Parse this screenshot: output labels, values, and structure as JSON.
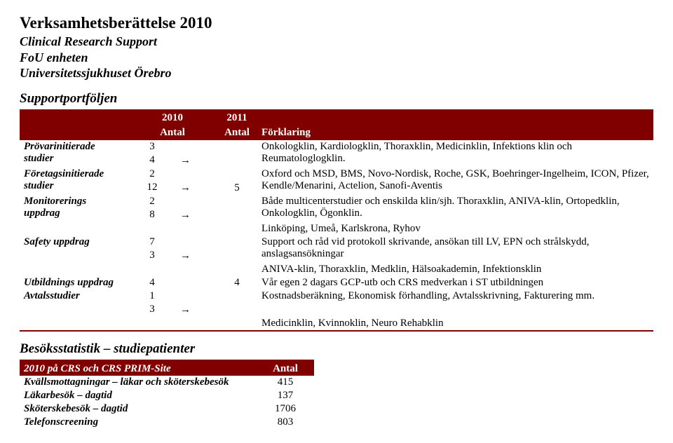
{
  "header": {
    "title": "Verksamhetsberättelse 2010",
    "sub1": "Clinical Research Support",
    "sub2": "FoU enheten",
    "sub3": "Universitetssjukhuset Örebro"
  },
  "port": {
    "heading": "Supportportföljen",
    "colYears": {
      "y2010": "2010",
      "y2011": "2011"
    },
    "colHdr": {
      "antal1": "Antal",
      "antal2": "Antal",
      "forklaring": "Förklaring"
    },
    "arrow": "→",
    "rows": {
      "r1": {
        "label": "Prövarinitierade studier",
        "a": "3",
        "b": "4",
        "c": "",
        "desc": "Onkologklin, Kardiologklin, Thoraxklin, Medicinklin, Infektions klin och Reumatologlogklin."
      },
      "r2": {
        "label": "Företagsinitierade studier",
        "a": "2",
        "b": "12",
        "c": "5",
        "desc": "Oxford och MSD, BMS, Novo-Nordisk, Roche, GSK, Boehringer-Ingelheim, ICON, Pfizer, Kendle/Menarini, Actelion, Sanofi-Aventis"
      },
      "r3": {
        "label": "Monitorerings uppdrag",
        "a": "2",
        "b": "8",
        "c": "",
        "desc": "Både multicenterstudier och enskilda klin/sjh. Thoraxklin, ANIVA-klin, Ortopedklin, Onkologklin, Ögonklin.",
        "desc2": "Linköping, Umeå, Karlskrona, Ryhov"
      },
      "r4": {
        "label": "Safety uppdrag",
        "a": "7",
        "b": "3",
        "c": "",
        "desc": "Support och råd vid protokoll skrivande, ansökan till LV, EPN och strålskydd, anslagsansökningar",
        "desc2": "ANIVA-klin, Thoraxklin, Medklin, Hälsoakademin, Infektionsklin"
      },
      "r5": {
        "label": "Utbildnings uppdrag",
        "a": "4",
        "c": "4",
        "desc": "Vår egen 2 dagars GCP-utb och CRS medverkan i ST utbildningen"
      },
      "r6": {
        "label": "Avtalsstudier",
        "a": "1",
        "b": "3",
        "c": "",
        "desc": "Kostnadsberäkning, Ekonomisk förhandling, Avtalsskrivning, Fakturering mm.",
        "desc2": "Medicinklin, Kvinnoklin, Neuro Rehabklin"
      }
    }
  },
  "stats": {
    "heading": "Besöksstatistik – studiepatienter",
    "hdr": {
      "left": "2010 på CRS och CRS PRIM-Site",
      "right": "Antal"
    },
    "rows": {
      "s1": {
        "label": "Kvällsmottagningar – läkar och sköterskebesök",
        "val": "415"
      },
      "s2": {
        "label": "Läkarbesök – dagtid",
        "val": "137"
      },
      "s3": {
        "label": "Sköterskebesök – dagtid",
        "val": "1706"
      },
      "s4": {
        "label": "Telefonscreening",
        "val": "803"
      }
    }
  }
}
